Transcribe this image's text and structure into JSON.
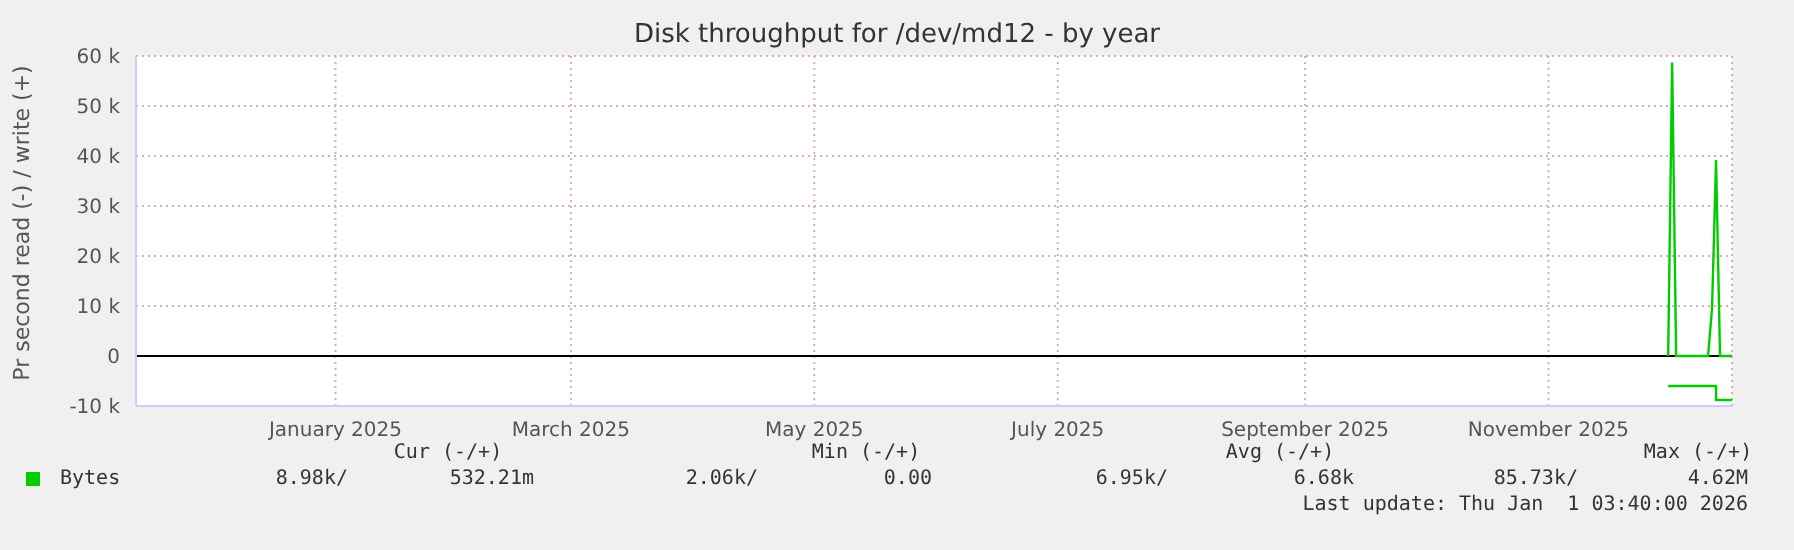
{
  "chart_data": {
    "type": "line",
    "title": "Disk throughput for /dev/md12 - by year",
    "ylabel": "Pr second read (-) / write (+)",
    "x": [
      "2025-12-01",
      "2025-12-02",
      "2025-12-03",
      "2025-12-11",
      "2025-12-12",
      "2025-12-13",
      "2025-12-14",
      "2025-12-17"
    ],
    "series": [
      {
        "name": "Bytes",
        "color": "#00cc00",
        "values": [
          0,
          58500,
          0,
          0,
          9600,
          39000,
          0,
          0
        ]
      },
      {
        "type": "step",
        "color": "#00cc00",
        "values": [
          -6000,
          -6000,
          -6000,
          -6000,
          -6000,
          -8800,
          -8800,
          -8800
        ]
      }
    ],
    "xlim": [
      "2024-11-12",
      "2025-12-17"
    ],
    "xticks": [
      {
        "value": "2025-01-01",
        "label": "January 2025"
      },
      {
        "value": "2025-03-01",
        "label": "March 2025"
      },
      {
        "value": "2025-05-01",
        "label": "May 2025"
      },
      {
        "value": "2025-07-01",
        "label": "July 2025"
      },
      {
        "value": "2025-09-01",
        "label": "September 2025"
      },
      {
        "value": "2025-11-01",
        "label": "November 2025"
      }
    ],
    "ylim": [
      -10000,
      60000
    ],
    "yticks": [
      {
        "value": -10000,
        "label": "-10 k"
      },
      0,
      {
        "value": 10000,
        "label": "10 k"
      },
      {
        "value": 20000,
        "label": "20 k"
      },
      {
        "value": 30000,
        "label": "30 k"
      },
      {
        "value": 40000,
        "label": "40 k"
      },
      {
        "value": 50000,
        "label": "50 k"
      },
      {
        "value": 60000,
        "label": "60 k"
      }
    ],
    "ref_lines": [
      {
        "axis": "y",
        "value": 0,
        "color": "#000000"
      }
    ],
    "grid": true,
    "legend": "bottom left",
    "marker": "none",
    "annotations": [
      "Cur (-/+)",
      "Min (-/+)",
      "Avg (-/+)",
      "Max (-/+)",
      "8.98k/",
      "532.21m",
      "2.06k/",
      "0.00",
      "6.95k/",
      "6.68k",
      "85.73k/",
      "4.62M",
      "Last update: Thu Jan  1 03:40:00 2026"
    ]
  }
}
